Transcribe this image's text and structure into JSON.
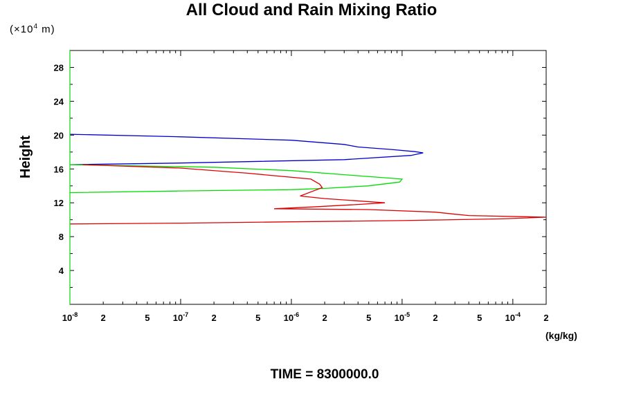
{
  "chart_data": {
    "type": "line",
    "title": "All Cloud and Rain Mixing Ratio",
    "y_unit_prefix": "(×10",
    "y_unit_exp": "4",
    "y_unit_suffix": " m)",
    "ylabel": "Height",
    "xlabel": "(kg/kg)",
    "x_scale": "log",
    "xlim": [
      1e-08,
      0.0002
    ],
    "ylim": [
      0,
      30
    ],
    "y_ticks": [
      4,
      8,
      12,
      16,
      20,
      24,
      28
    ],
    "x_tick_labels": [
      {
        "value": 1e-08,
        "base": "10",
        "exp": "-8"
      },
      {
        "value": 2e-08,
        "base": "2",
        "exp": ""
      },
      {
        "value": 5e-08,
        "base": "5",
        "exp": ""
      },
      {
        "value": 1e-07,
        "base": "10",
        "exp": "-7"
      },
      {
        "value": 2e-07,
        "base": "2",
        "exp": ""
      },
      {
        "value": 5e-07,
        "base": "5",
        "exp": ""
      },
      {
        "value": 1e-06,
        "base": "10",
        "exp": "-6"
      },
      {
        "value": 2e-06,
        "base": "2",
        "exp": ""
      },
      {
        "value": 5e-06,
        "base": "5",
        "exp": ""
      },
      {
        "value": 1e-05,
        "base": "10",
        "exp": "-5"
      },
      {
        "value": 2e-05,
        "base": "2",
        "exp": ""
      },
      {
        "value": 5e-05,
        "base": "5",
        "exp": ""
      },
      {
        "value": 0.0001,
        "base": "10",
        "exp": "-4"
      },
      {
        "value": 0.0002,
        "base": "2",
        "exp": ""
      }
    ],
    "series": [
      {
        "color": "#0000cc",
        "points": [
          [
            1e-08,
            20.1
          ],
          [
            1e-07,
            19.8
          ],
          [
            1e-06,
            19.4
          ],
          [
            3e-06,
            18.9
          ],
          [
            4e-06,
            18.6
          ],
          [
            8e-06,
            18.3
          ],
          [
            1.3e-05,
            18.05
          ],
          [
            1.55e-05,
            17.9
          ],
          [
            1.2e-05,
            17.6
          ],
          [
            3e-06,
            17.1
          ],
          [
            1e-07,
            16.7
          ],
          [
            1e-08,
            16.5
          ]
        ]
      },
      {
        "color": "#00dd00",
        "points": [
          [
            1e-08,
            16.5
          ],
          [
            2e-07,
            16.2
          ],
          [
            1e-06,
            15.8
          ],
          [
            4e-06,
            15.2
          ],
          [
            1e-05,
            14.8
          ],
          [
            9.5e-06,
            14.45
          ],
          [
            5e-06,
            14.0
          ],
          [
            2e-06,
            13.7
          ],
          [
            1e-06,
            13.55
          ],
          [
            1e-07,
            13.4
          ],
          [
            1e-08,
            13.2
          ]
        ]
      },
      {
        "color": "#dd0000",
        "points": [
          [
            1.3e-08,
            16.5
          ],
          [
            1e-07,
            16.1
          ],
          [
            4e-07,
            15.5
          ],
          [
            1.5e-06,
            14.8
          ],
          [
            1.8e-06,
            14.2
          ],
          [
            1.9e-06,
            13.8
          ],
          [
            1.2e-06,
            12.8
          ],
          [
            2e-06,
            12.5
          ],
          [
            7e-06,
            12.0
          ],
          [
            4e-06,
            11.8
          ],
          [
            1.5e-06,
            11.5
          ],
          [
            7e-07,
            11.3
          ],
          [
            5e-06,
            11.2
          ],
          [
            2e-05,
            10.9
          ],
          [
            3e-05,
            10.65
          ],
          [
            4e-05,
            10.5
          ],
          [
            0.0002,
            10.3
          ],
          [
            8e-05,
            10.1
          ],
          [
            1e-05,
            9.9
          ],
          [
            1e-06,
            9.75
          ],
          [
            1e-07,
            9.6
          ],
          [
            1e-08,
            9.5
          ]
        ]
      }
    ]
  },
  "footer": {
    "time_label": "TIME = 8300000.0"
  }
}
